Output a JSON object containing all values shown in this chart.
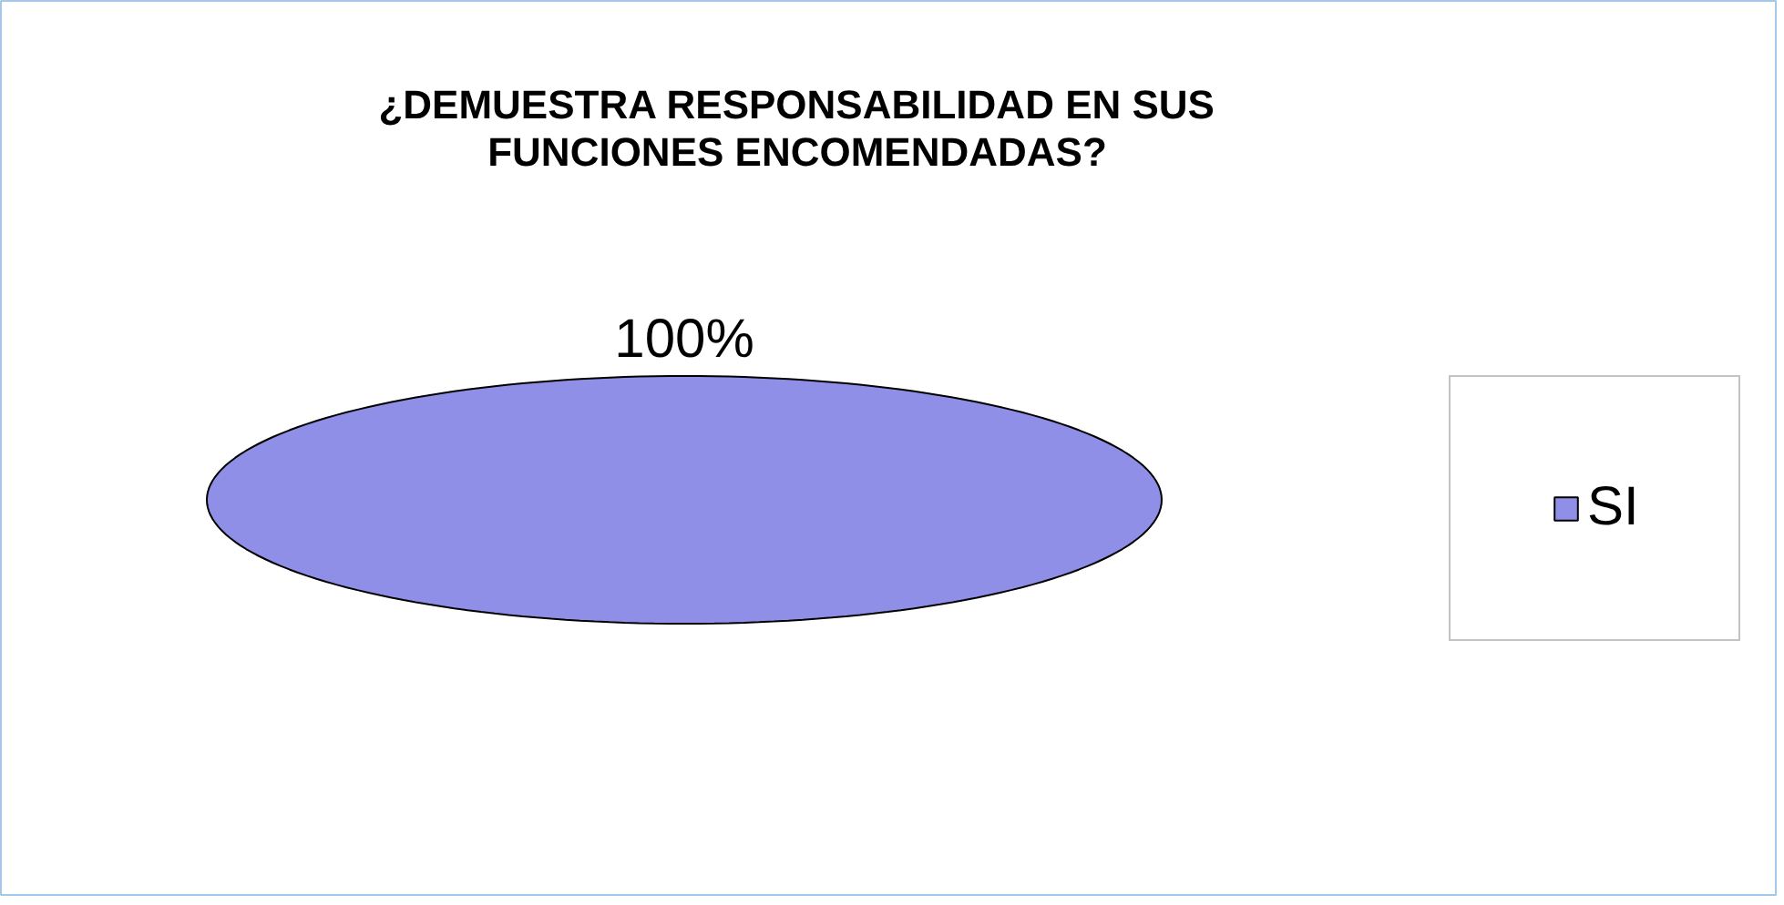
{
  "chart_data": {
    "type": "pie",
    "title": "¿DEMUESTRA RESPONSABILIDAD EN SUS\nFUNCIONES ENCOMENDADAS?",
    "categories": [
      "SI"
    ],
    "values": [
      100
    ],
    "colors": [
      "#8f8fe8"
    ],
    "value_labels": [
      "100%"
    ],
    "legend": "right"
  }
}
